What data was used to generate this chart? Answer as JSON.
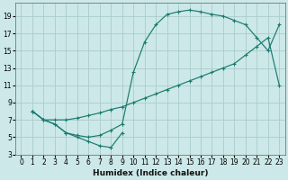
{
  "xlabel": "Humidex (Indice chaleur)",
  "bg_color": "#cce8e8",
  "grid_color": "#aacccc",
  "line_color": "#1a7a6e",
  "xlim": [
    -0.5,
    23.5
  ],
  "ylim": [
    3,
    20.5
  ],
  "xticks": [
    0,
    1,
    2,
    3,
    4,
    5,
    6,
    7,
    8,
    9,
    10,
    11,
    12,
    13,
    14,
    15,
    16,
    17,
    18,
    19,
    20,
    21,
    22,
    23
  ],
  "yticks": [
    3,
    5,
    7,
    9,
    11,
    13,
    15,
    17,
    19
  ],
  "curve_upper_x": [
    1,
    2,
    3,
    4,
    5,
    6,
    7,
    8,
    9,
    10,
    11,
    12,
    13,
    14,
    15,
    16,
    17,
    18,
    19,
    20,
    21,
    22,
    23
  ],
  "curve_upper_y": [
    8,
    7,
    6.5,
    5.5,
    5.2,
    5.0,
    5.2,
    5.8,
    6.5,
    12.5,
    16.0,
    18.0,
    19.2,
    19.5,
    19.7,
    19.5,
    19.2,
    19.0,
    18.5,
    18.0,
    16.5,
    15.0,
    18.0
  ],
  "curve_mid_x": [
    1,
    2,
    3,
    4,
    5,
    6,
    7,
    8,
    9,
    10,
    11,
    12,
    13,
    14,
    15,
    16,
    17,
    18,
    19,
    20,
    21,
    22,
    23
  ],
  "curve_mid_y": [
    8,
    7,
    7.0,
    7.0,
    7.2,
    7.5,
    7.8,
    8.2,
    8.5,
    9.0,
    9.5,
    10.0,
    10.5,
    11.0,
    11.5,
    12.0,
    12.5,
    13.0,
    13.5,
    14.5,
    15.5,
    16.5,
    11.0
  ],
  "curve_low_x": [
    1,
    2,
    3,
    4,
    5,
    6,
    7,
    8,
    9
  ],
  "curve_low_y": [
    8,
    7,
    6.5,
    5.5,
    5.0,
    4.5,
    4.0,
    3.8,
    5.5
  ]
}
